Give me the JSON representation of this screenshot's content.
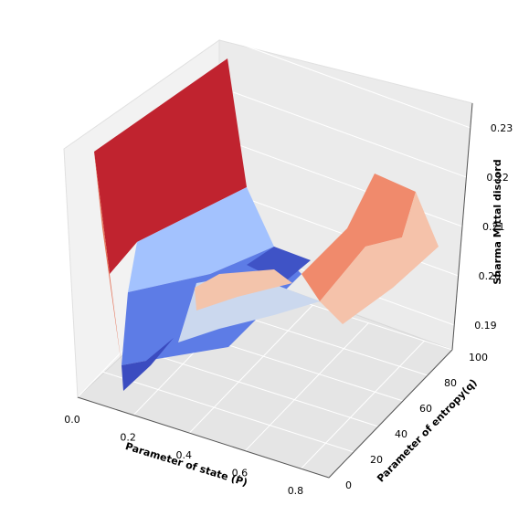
{
  "chart_data": {
    "type": "surface3d",
    "title": "",
    "xlabel": "Parameter of state (P)",
    "ylabel": "Parameter of entropy(q)",
    "zlabel": "Sharma Mittal discord",
    "xlim": [
      0.0,
      0.9
    ],
    "ylim": [
      0,
      100
    ],
    "zlim": [
      0.185,
      0.235
    ],
    "x_ticks": [
      "0.0",
      "0.2",
      "0.4",
      "0.6",
      "0.8"
    ],
    "y_ticks": [
      "0",
      "20",
      "40",
      "60",
      "80",
      "100"
    ],
    "z_ticks": [
      "0.19",
      "0.20",
      "0.21",
      "0.22",
      "0.23"
    ],
    "colormap": "coolwarm",
    "colormap_stops": [
      "#3b4cc0",
      "#7396f5",
      "#b0cbfc",
      "#dddddd",
      "#f6bfa6",
      "#ee8468",
      "#b40426"
    ],
    "grid": true,
    "surface_description_values": {
      "p": [
        0.05,
        0.35,
        0.9
      ],
      "z_at_q0": [
        0.2,
        0.212,
        0.198
      ],
      "z_peak_high_q": 0.236,
      "z_min": 0.187
    }
  }
}
